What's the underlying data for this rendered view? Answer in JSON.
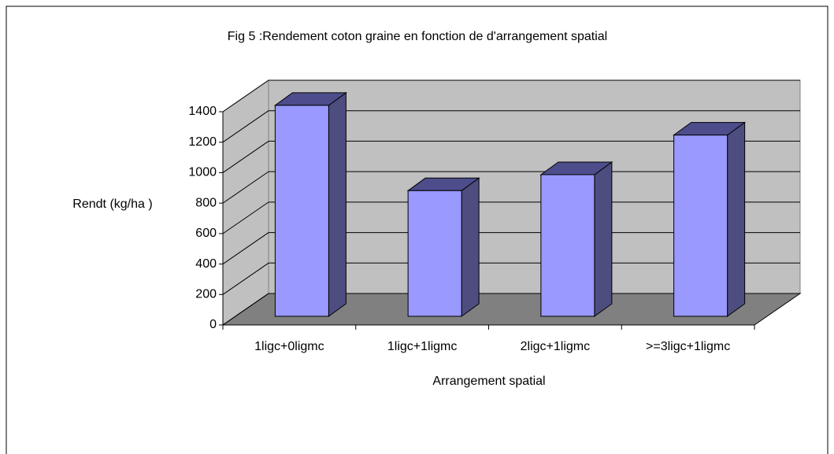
{
  "chart_data": {
    "type": "bar3d",
    "title": "Fig 5 :Rendement coton graine en fonction de d'arrangement spatial",
    "x_label": "Arrangement spatial",
    "y_label": "Rendt (kg/ha )",
    "categories": [
      "1ligc+0ligmc",
      "1ligc+1ligmc",
      "2ligc+1ligmc",
      ">=3ligc+1ligmc"
    ],
    "values": [
      1385,
      825,
      930,
      1190
    ],
    "color": "#9999ff",
    "ylim": [
      0,
      1400
    ],
    "yticks": [
      0,
      200,
      400,
      600,
      800,
      1000,
      1200,
      1400
    ],
    "grid": true
  }
}
